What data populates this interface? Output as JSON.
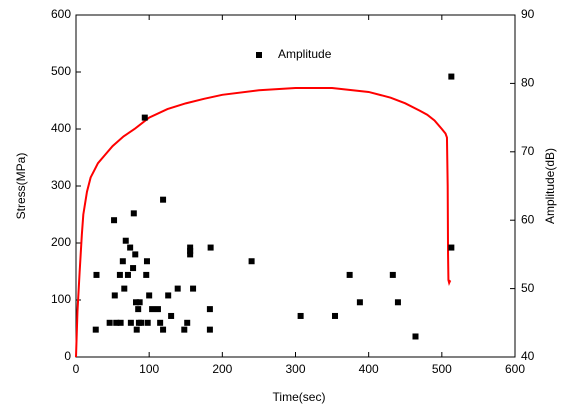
{
  "chart_data": {
    "type": "line",
    "xlabel": "Time(sec)",
    "ylabel": "Stress(MPa)",
    "y2label": "Amplitude(dB)",
    "xlim": [
      0,
      600
    ],
    "xticks": [
      0,
      100,
      200,
      300,
      400,
      500,
      600
    ],
    "ylim": [
      0,
      600
    ],
    "yticks": [
      0,
      100,
      200,
      300,
      400,
      500,
      600
    ],
    "y2lim": [
      40,
      90
    ],
    "y2ticks": [
      40,
      50,
      60,
      70,
      80,
      90
    ],
    "legend": "top",
    "series": [
      {
        "type": "line",
        "color": "#ff0000",
        "x": [
          0,
          2,
          5,
          8,
          10,
          15,
          20,
          26,
          30,
          40,
          50,
          65,
          80,
          100,
          125,
          150,
          175,
          200,
          250,
          300,
          350,
          400,
          430,
          450,
          470,
          480,
          490,
          500,
          505,
          507,
          508,
          508.5,
          509,
          510,
          511,
          512
        ],
        "values": [
          0,
          80,
          150,
          215,
          250,
          290,
          315,
          330,
          340,
          355,
          370,
          387,
          400,
          420,
          435,
          445,
          453,
          460,
          468,
          472,
          472,
          465,
          455,
          445,
          432,
          425,
          415,
          400,
          392,
          385,
          300,
          180,
          135,
          130,
          133,
          132
        ]
      },
      {
        "type": "scatter",
        "name": "Amplitude",
        "color": "#000000",
        "axis": "y2",
        "x": [
          27,
          28,
          46,
          52,
          53,
          55,
          60,
          61,
          64,
          66,
          68,
          71,
          74,
          75,
          78,
          79,
          81,
          82,
          83,
          85,
          86,
          87,
          89,
          94,
          96,
          97,
          98,
          100,
          104,
          112,
          115,
          119,
          119,
          126,
          130,
          139,
          148,
          152,
          156,
          156,
          156,
          160,
          183,
          183,
          184,
          240,
          307,
          354,
          374,
          388,
          433,
          440,
          464,
          513,
          513
        ],
        "values": [
          44,
          52,
          45,
          60,
          49,
          45,
          52,
          45,
          54,
          50,
          57,
          52,
          56,
          45,
          53,
          61,
          55,
          48,
          44,
          47,
          45,
          48,
          45,
          75,
          52,
          54,
          45,
          49,
          47,
          47,
          45,
          63,
          44,
          49,
          46,
          50,
          44,
          45,
          56,
          55,
          55.5,
          50,
          47,
          44,
          56,
          54,
          46,
          46,
          52,
          48,
          52,
          48,
          43,
          81,
          56
        ]
      }
    ]
  }
}
